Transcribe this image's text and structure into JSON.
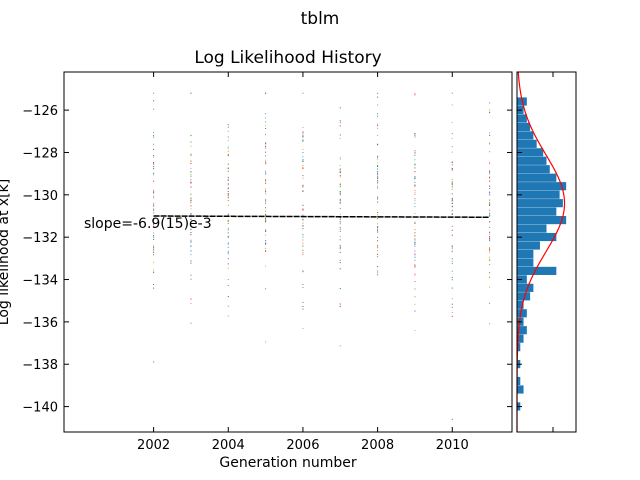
{
  "chart_data": {
    "type": "scatter",
    "suptitle": "tblm",
    "title": "Log Likelihood History",
    "xlabel": "Generation number",
    "ylabel": "Log likelihood at x[k]",
    "xlim": [
      1999.6,
      2011.6
    ],
    "ylim": [
      -141.2,
      -124.2
    ],
    "x_ticks": [
      2002,
      2004,
      2006,
      2008,
      2010
    ],
    "y_ticks": [
      -140,
      -138,
      -136,
      -134,
      -132,
      -130,
      -128,
      -126
    ],
    "generations": [
      2002,
      2003,
      2004,
      2005,
      2006,
      2007,
      2008,
      2009,
      2010,
      2011
    ],
    "trend": {
      "x": [
        2002,
        2011
      ],
      "y": [
        -131.0,
        -131.06
      ]
    },
    "annotation": "slope=-6.9(15)e-3",
    "histogram": {
      "orientation": "horizontal",
      "bins": [
        {
          "low": -140.6,
          "high": -140.2,
          "count": 0
        },
        {
          "low": -140.2,
          "high": -139.8,
          "count": 1
        },
        {
          "low": -139.8,
          "high": -139.4,
          "count": 0
        },
        {
          "low": -139.4,
          "high": -139.0,
          "count": 2
        },
        {
          "low": -139.0,
          "high": -138.6,
          "count": 1
        },
        {
          "low": -138.6,
          "high": -138.2,
          "count": 0
        },
        {
          "low": -138.2,
          "high": -137.8,
          "count": 1
        },
        {
          "low": -137.8,
          "high": -137.4,
          "count": 0
        },
        {
          "low": -137.4,
          "high": -137.0,
          "count": 1
        },
        {
          "low": -137.0,
          "high": -136.6,
          "count": 2
        },
        {
          "low": -136.6,
          "high": -136.2,
          "count": 3
        },
        {
          "low": -136.2,
          "high": -135.8,
          "count": 2
        },
        {
          "low": -135.8,
          "high": -135.4,
          "count": 3
        },
        {
          "low": -135.4,
          "high": -135.0,
          "count": 2
        },
        {
          "low": -135.0,
          "high": -134.6,
          "count": 4
        },
        {
          "low": -134.6,
          "high": -134.2,
          "count": 5
        },
        {
          "low": -134.2,
          "high": -133.8,
          "count": 3
        },
        {
          "low": -133.8,
          "high": -133.4,
          "count": 12
        },
        {
          "low": -133.4,
          "high": -133.0,
          "count": 5
        },
        {
          "low": -133.0,
          "high": -132.6,
          "count": 5
        },
        {
          "low": -132.6,
          "high": -132.2,
          "count": 7
        },
        {
          "low": -132.2,
          "high": -131.8,
          "count": 12
        },
        {
          "low": -131.8,
          "high": -131.4,
          "count": 9
        },
        {
          "low": -131.4,
          "high": -131.0,
          "count": 15
        },
        {
          "low": -131.0,
          "high": -130.6,
          "count": 12
        },
        {
          "low": -130.6,
          "high": -130.2,
          "count": 14
        },
        {
          "low": -130.2,
          "high": -129.8,
          "count": 13
        },
        {
          "low": -129.8,
          "high": -129.4,
          "count": 15
        },
        {
          "low": -129.4,
          "high": -129.0,
          "count": 12
        },
        {
          "low": -129.0,
          "high": -128.6,
          "count": 10
        },
        {
          "low": -128.6,
          "high": -128.2,
          "count": 9
        },
        {
          "low": -128.2,
          "high": -127.8,
          "count": 8
        },
        {
          "low": -127.8,
          "high": -127.4,
          "count": 6
        },
        {
          "low": -127.4,
          "high": -127.0,
          "count": 5
        },
        {
          "low": -127.0,
          "high": -126.6,
          "count": 4
        },
        {
          "low": -126.6,
          "high": -126.2,
          "count": 3
        },
        {
          "low": -126.2,
          "high": -125.8,
          "count": 2
        },
        {
          "low": -125.8,
          "high": -125.4,
          "count": 3
        }
      ],
      "count_max": 18,
      "fit": {
        "type": "normal",
        "mean": -130.4,
        "sd": 2.3
      }
    },
    "colors": {
      "bars": "#1f77b4",
      "fit_line": "#ff0000",
      "trend_line": "#000000",
      "points": [
        "#1f77b4",
        "#ff7f0e",
        "#2ca02c",
        "#d62728",
        "#9467bd",
        "#8c564b",
        "#e377c2",
        "#7f7f7f",
        "#bcbd22",
        "#17becf"
      ]
    }
  }
}
